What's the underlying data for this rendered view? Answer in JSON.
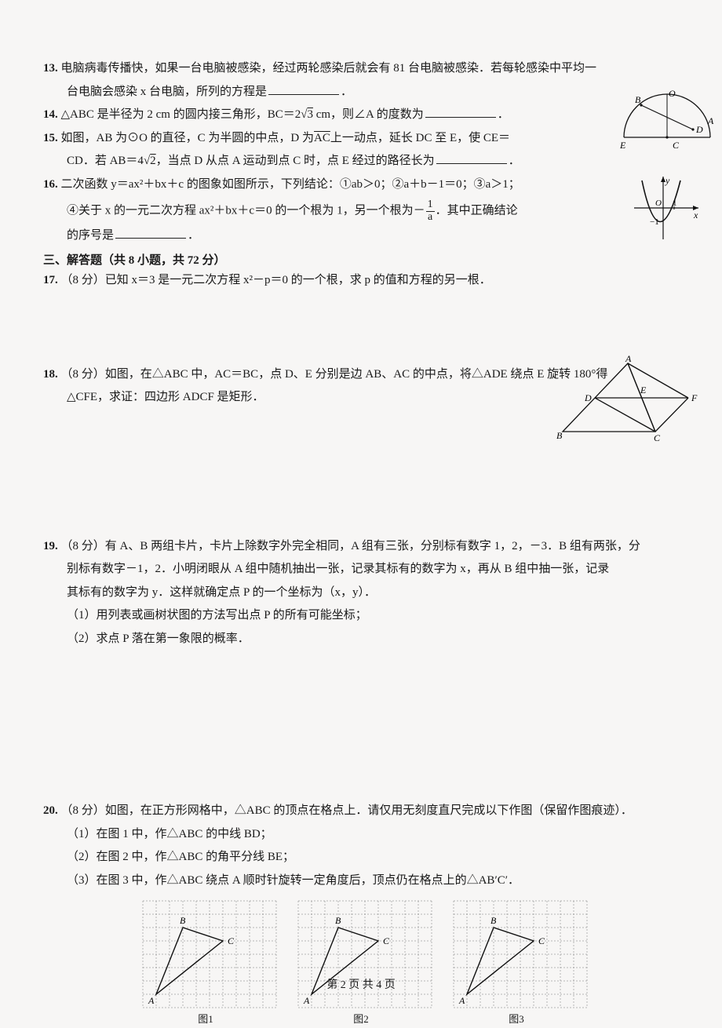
{
  "q13": {
    "num": "13.",
    "text_a": "电脑病毒传播快，如果一台电脑被感染，经过两轮感染后就会有 81 台电脑被感染．若每轮感染中平均一",
    "text_b": "台电脑会感染 x 台电脑，所列的方程是",
    "period": "．"
  },
  "q14": {
    "num": "14.",
    "text_a": "△ABC 是半径为 2 cm 的圆内接三角形，BC＝2",
    "sqrt": "√3",
    "text_b": " cm，则∠A 的度数为",
    "period": "．"
  },
  "q15": {
    "num": "15.",
    "text_a": "如图，AB 为⊙O 的直径，C 为半圆的中点，D 为",
    "arc": "AC",
    "text_b": "上一动点，延长 DC 至 E，使 CE＝",
    "text_c": "CD．若 AB＝4",
    "sqrt": "√2",
    "text_d": "，当点 D 从点 A 运动到点 C 时，点 E 经过的路径长为",
    "period": "．"
  },
  "q16": {
    "num": "16.",
    "text_a": "二次函数 y＝ax²＋bx＋c 的图象如图所示，下列结论：①ab＞0；②a＋b－1＝0；③a＞1；",
    "text_b": "④关于 x 的一元二次方程 ax²＋bx＋c＝0 的一个根为 1，另一个根为－",
    "frac_n": "1",
    "frac_d": "a",
    "text_c": "．其中正确结论",
    "text_d": "的序号是",
    "period": "．"
  },
  "sec3": "三、解答题（共 8 小题，共 72 分）",
  "q17": {
    "num": "17.",
    "text": "（8 分）已知 x＝3 是一元二次方程 x²－p＝0 的一个根，求 p 的值和方程的另一根．"
  },
  "q18": {
    "num": "18.",
    "text_a": "（8 分）如图，在△ABC 中，AC＝BC，点 D、E 分别是边 AB、AC 的中点，将△ADE 绕点 E 旋转 180°得",
    "text_b": "△CFE，求证：四边形 ADCF 是矩形．"
  },
  "q19": {
    "num": "19.",
    "text_a": "（8 分）有 A、B 两组卡片，卡片上除数字外完全相同，A 组有三张，分别标有数字 1，2，－3．B 组有两张，分",
    "text_b": "别标有数字－1，2．小明闭眼从 A 组中随机抽出一张，记录其标有的数字为 x，再从 B 组中抽一张，记录",
    "text_c": "其标有的数字为 y．这样就确定点 P 的一个坐标为（x，y）．",
    "sub1": "（1）用列表或画树状图的方法写出点 P 的所有可能坐标；",
    "sub2": "（2）求点 P 落在第一象限的概率．"
  },
  "q20": {
    "num": "20.",
    "text_a": "（8 分）如图，在正方形网格中，△ABC 的顶点在格点上．请仅用无刻度直尺完成以下作图（保留作图痕迹）．",
    "sub1": "（1）在图 1 中，作△ABC 的中线 BD；",
    "sub2": "（2）在图 2 中，作△ABC 的角平分线 BE；",
    "sub3": "（3）在图 3 中，作△ABC 绕点 A 顺时针旋转一定角度后，顶点仍在格点上的△AB′C′．",
    "cap1": "图1",
    "cap2": "图2",
    "cap3": "图3"
  },
  "footer": "第 2 页  共 4 页",
  "fig14": {
    "labels": {
      "B": "B",
      "O": "O",
      "A": "A",
      "D": "D",
      "E": "E",
      "C": "C"
    }
  },
  "fig16": {
    "labels": {
      "y": "y",
      "O": "O",
      "x": "x",
      "one": "1",
      "mone": "−1"
    }
  },
  "fig18": {
    "labels": {
      "A": "A",
      "D": "D",
      "E": "E",
      "F": "F",
      "B": "B",
      "C": "C"
    }
  },
  "grid": {
    "labels": {
      "A": "A",
      "B": "B",
      "C": "C"
    },
    "cell": 17,
    "cols": 10,
    "rows": 8,
    "A": [
      1,
      7
    ],
    "B": [
      3,
      2
    ],
    "C": [
      6,
      3
    ],
    "stroke": "#777",
    "tri_stroke": "#111"
  }
}
